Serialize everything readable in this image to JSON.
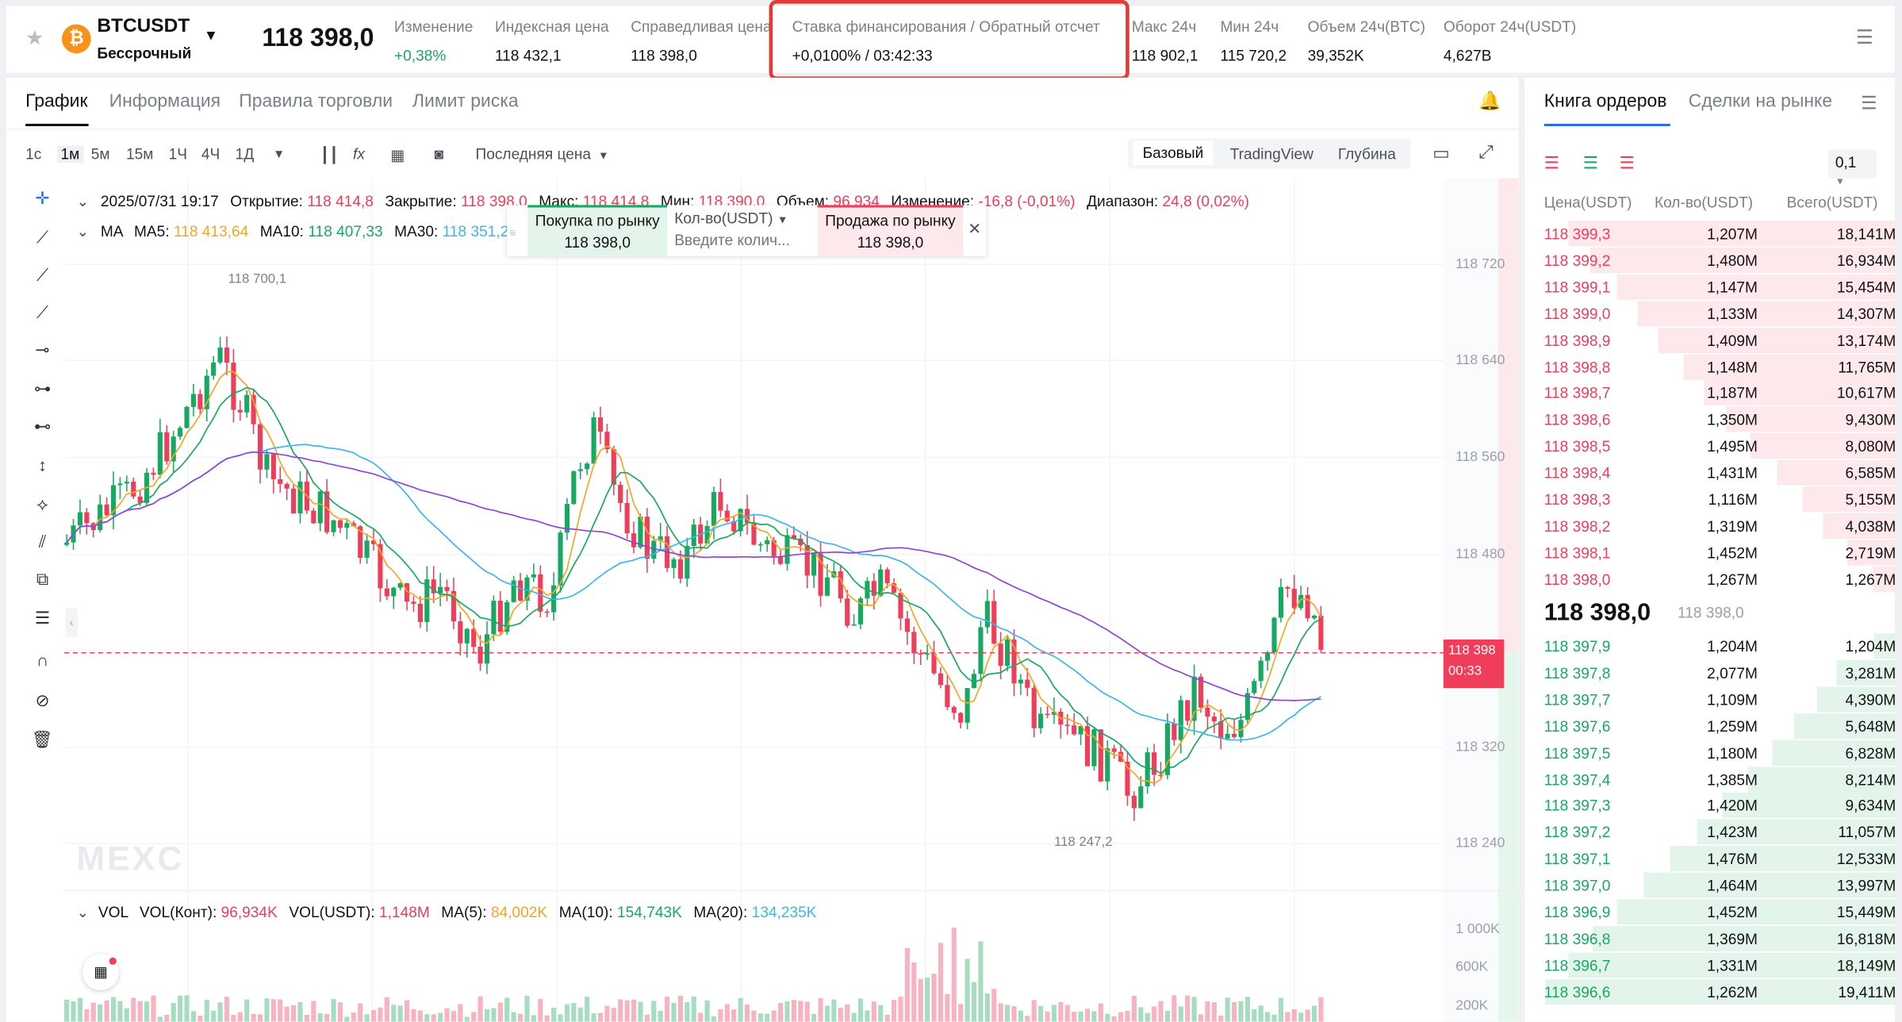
{
  "header": {
    "symbol": "BTCUSDT",
    "contract_type": "Бессрочный",
    "last_price": "118 398,0",
    "stats": [
      {
        "label": "Изменение",
        "value": "+0,38%"
      },
      {
        "label": "Индексная цена",
        "value": "118 432,1"
      },
      {
        "label": "Справедливая цена",
        "value": "118 398,0"
      },
      {
        "label": "Ставка финансирования / Обратный отсчет",
        "value": "+0,0100%  /  03:42:33"
      },
      {
        "label": "Макс 24ч",
        "value": "118 902,1"
      },
      {
        "label": "Мин 24ч",
        "value": "115 720,2"
      },
      {
        "label": "Объем 24ч(BTC)",
        "value": "39,352K"
      },
      {
        "label": "Оборот 24ч(USDT)",
        "value": "4,627B"
      }
    ]
  },
  "chart_tabs": [
    "График",
    "Информация",
    "Правила торговли",
    "Лимит риска"
  ],
  "intervals": [
    "1с",
    "1м",
    "5м",
    "15м",
    "1Ч",
    "4Ч",
    "1Д"
  ],
  "price_type": "Последняя цена",
  "views": [
    "Базовый",
    "TradingView",
    "Глубина"
  ],
  "ohlc": {
    "time": "2025/07/31 19:17",
    "open_label": "Открытие:",
    "open": "118 414,8",
    "close_label": "Закрытие:",
    "close": "118 398,0",
    "high_label": "Макс:",
    "high": "118 414,8",
    "low_label": "Мин:",
    "low": "118 390,0",
    "vol_label": "Объем:",
    "vol": "96 934",
    "chg_label": "Изменение:",
    "chg": "-16,8 (-0,01%)",
    "range_label": "Диапазон:",
    "range": "24,8 (0,02%)"
  },
  "ma": {
    "label": "MA",
    "ma5_label": "MA5:",
    "ma5": "118 413,64",
    "ma10_label": "MA10:",
    "ma10": "118 407,33",
    "ma30_label": "MA30:",
    "ma30": "118 351,2"
  },
  "quick_trade": {
    "buy_label": "Покупка по рынку",
    "buy_price": "118 398,0",
    "qty_label": "Кол-во(USDT)",
    "qty_placeholder": "Введите колич...",
    "sell_label": "Продажа по рынку",
    "sell_price": "118 398,0"
  },
  "chart_marks": {
    "high": "118 700,1",
    "low": "118 247,2",
    "current": "118 398",
    "countdown": "00:33"
  },
  "price_axis": [
    "118 720",
    "118 640",
    "118 560",
    "118 480",
    "118 320",
    "118 240"
  ],
  "volume": {
    "label": "VOL",
    "vol_cont_label": "VOL(Конт):",
    "vol_cont": "96,934K",
    "vol_usdt_label": "VOL(USDT):",
    "vol_usdt": "1,148M",
    "ma5_label": "MA(5):",
    "ma5": "84,002K",
    "ma10_label": "MA(10):",
    "ma10": "154,743K",
    "ma20_label": "MA(20):",
    "ma20": "134,235K",
    "axis": [
      "1 000K",
      "600K",
      "200K"
    ]
  },
  "watermark": "MEXC",
  "orderbook": {
    "tabs": [
      "Книга ордеров",
      "Сделки на рынке"
    ],
    "precision": "0,1",
    "columns": [
      "Цена(USDT)",
      "Кол-во(USDT)",
      "Всего(USDT)"
    ],
    "asks": [
      [
        "118 399,3",
        "1,207M",
        "18,141M"
      ],
      [
        "118 399,2",
        "1,480M",
        "16,934M"
      ],
      [
        "118 399,1",
        "1,147M",
        "15,454M"
      ],
      [
        "118 399,0",
        "1,133M",
        "14,307M"
      ],
      [
        "118 398,9",
        "1,409M",
        "13,174M"
      ],
      [
        "118 398,8",
        "1,148M",
        "11,765M"
      ],
      [
        "118 398,7",
        "1,187M",
        "10,617M"
      ],
      [
        "118 398,6",
        "1,350M",
        "9,430M"
      ],
      [
        "118 398,5",
        "1,495M",
        "8,080M"
      ],
      [
        "118 398,4",
        "1,431M",
        "6,585M"
      ],
      [
        "118 398,3",
        "1,116M",
        "5,155M"
      ],
      [
        "118 398,2",
        "1,319M",
        "4,038M"
      ],
      [
        "118 398,1",
        "1,452M",
        "2,719M"
      ],
      [
        "118 398,0",
        "1,267M",
        "1,267M"
      ]
    ],
    "mid_price": "118 398,0",
    "mid_mark": "118 398,0",
    "bids": [
      [
        "118 397,9",
        "1,204M",
        "1,204M"
      ],
      [
        "118 397,8",
        "2,077M",
        "3,281M"
      ],
      [
        "118 397,7",
        "1,109M",
        "4,390M"
      ],
      [
        "118 397,6",
        "1,259M",
        "5,648M"
      ],
      [
        "118 397,5",
        "1,180M",
        "6,828M"
      ],
      [
        "118 397,4",
        "1,385M",
        "8,214M"
      ],
      [
        "118 397,3",
        "1,420M",
        "9,634M"
      ],
      [
        "118 397,2",
        "1,423M",
        "11,057M"
      ],
      [
        "118 397,1",
        "1,476M",
        "12,533M"
      ],
      [
        "118 397,0",
        "1,464M",
        "13,997M"
      ],
      [
        "118 396,9",
        "1,452M",
        "15,449M"
      ],
      [
        "118 396,8",
        "1,369M",
        "16,818M"
      ],
      [
        "118 396,7",
        "1,331M",
        "18,149M"
      ],
      [
        "118 396,6",
        "1,262M",
        "19,411M"
      ]
    ]
  },
  "colors": {
    "up": "#17a962",
    "down": "#f03d5a",
    "ma5": "#f5a623",
    "ma10": "#17a962",
    "ma30": "#3ab7e8",
    "ma60": "#8e44d8"
  }
}
